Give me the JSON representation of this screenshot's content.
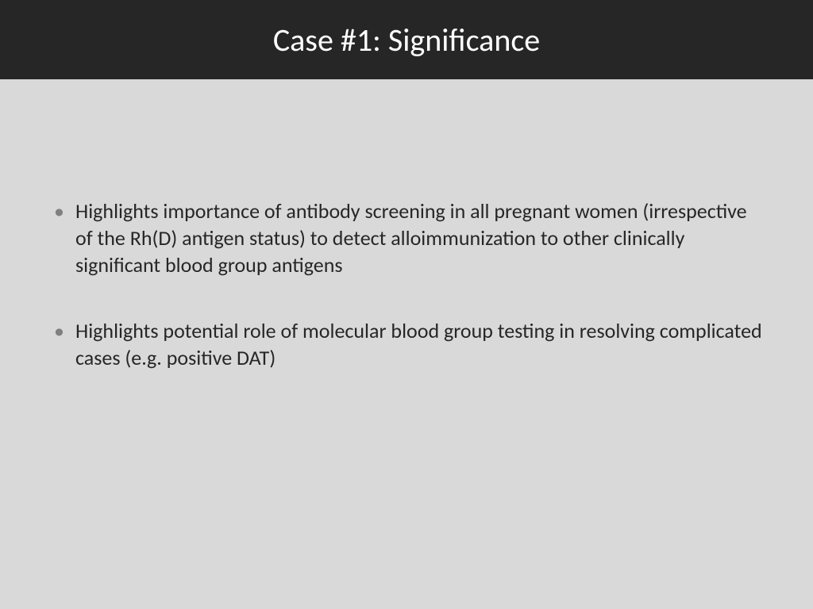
{
  "slide": {
    "title": "Case #1: Significance",
    "header_bg_color": "#262626",
    "body_bg_color": "#d9d9d9",
    "title_color": "#ffffff",
    "title_fontsize": 40,
    "bullet_color": "#808080",
    "text_color": "#262626",
    "text_fontsize": 26,
    "bullets": [
      "Highlights importance of antibody screening in all pregnant women (irrespective of the Rh(D) antigen status) to detect alloimmunization to other clinically significant blood group antigens",
      "Highlights potential role of molecular blood group testing in resolving complicated cases (e.g. positive DAT)"
    ]
  }
}
